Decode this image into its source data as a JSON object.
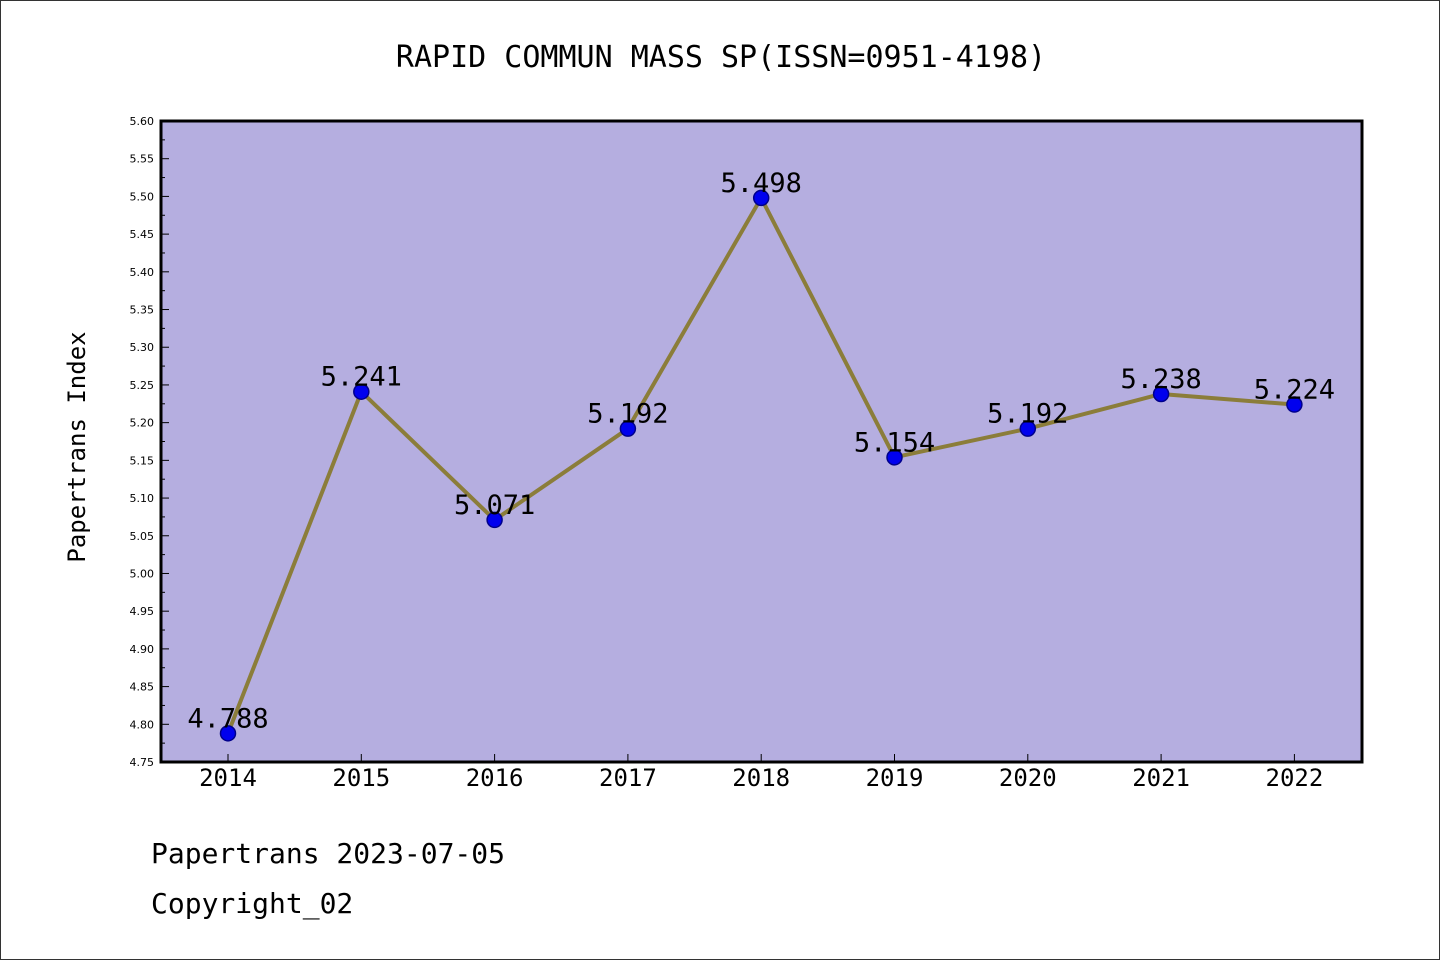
{
  "chart_data": {
    "type": "line",
    "title": "RAPID COMMUN MASS SP(ISSN=0951-4198)",
    "xlabel": "",
    "ylabel": "Papertrans Index",
    "categories": [
      "2014",
      "2015",
      "2016",
      "2017",
      "2018",
      "2019",
      "2020",
      "2021",
      "2022"
    ],
    "series": [
      {
        "values": [
          4.788,
          5.241,
          5.071,
          5.192,
          5.498,
          5.154,
          5.192,
          5.238,
          5.224
        ],
        "data_labels": [
          "4.788",
          "5.241",
          "5.071",
          "5.192",
          "5.498",
          "5.154",
          "5.192",
          "5.238",
          "5.224"
        ]
      }
    ],
    "ylim": [
      4.75,
      5.6
    ],
    "yticks": [
      "4.75",
      "4.80",
      "4.85",
      "4.90",
      "4.95",
      "5.00",
      "5.05",
      "5.10",
      "5.15",
      "5.20",
      "5.25",
      "5.30",
      "5.35",
      "5.40",
      "5.45",
      "5.50",
      "5.55",
      "5.60"
    ],
    "grid": false,
    "legend": "none",
    "colors": {
      "plot_background": "#b5aee0",
      "line": "#8b7d3a",
      "marker_fill": "#0000ee",
      "marker_stroke": "#00008b"
    }
  },
  "footer": {
    "line1": "Papertrans 2023-07-05",
    "line2": "Copyright_02"
  }
}
